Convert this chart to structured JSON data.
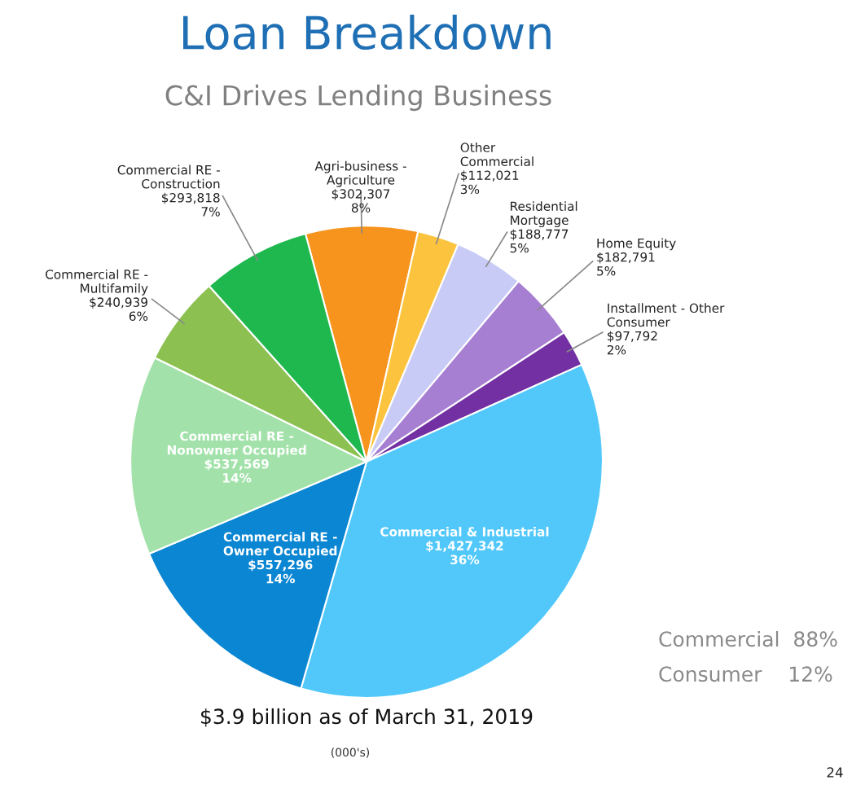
{
  "chart_data": {
    "type": "pie",
    "title": "Loan Breakdown",
    "subtitle": "C&I Drives Lending Business",
    "categories": [
      "Agri-business -\nAgriculture",
      "Other\nCommercial",
      "Residential\nMortgage",
      "Home Equity",
      "Installment - Other\nConsumer",
      "Commercial & Industrial",
      "Commercial RE -\nOwner Occupied",
      "Commercial RE -\nNonowner Occupied",
      "Commercial RE -\nMultifamily",
      "Commercial RE -\nConstruction"
    ],
    "values": [
      302307,
      112021,
      188777,
      182791,
      97792,
      1427342,
      557296,
      537569,
      240939,
      293818
    ],
    "value_labels": [
      "$302,307\n8%",
      "$112,021\n3%",
      "$188,777\n5%",
      "$182,791\n5%",
      "$97,792\n2%",
      "$1,427,342\n36%",
      "$557,296\n14%",
      "$537,569\n14%",
      "$240,939\n6%",
      "$293,818\n7%"
    ],
    "colors": [
      "#f7941d",
      "#fcc43e",
      "#c9cbf7",
      "#a77fd2",
      "#7230a2",
      "#52c8fa",
      "#0b86d2",
      "#a2e2aa",
      "#8cc152",
      "#1fb84f"
    ],
    "annotations": [
      "$3.9 billion as of March 31, 2019",
      "(000's)",
      "Commercial  88%",
      "Consumer    12%",
      "24"
    ],
    "legend": false
  }
}
